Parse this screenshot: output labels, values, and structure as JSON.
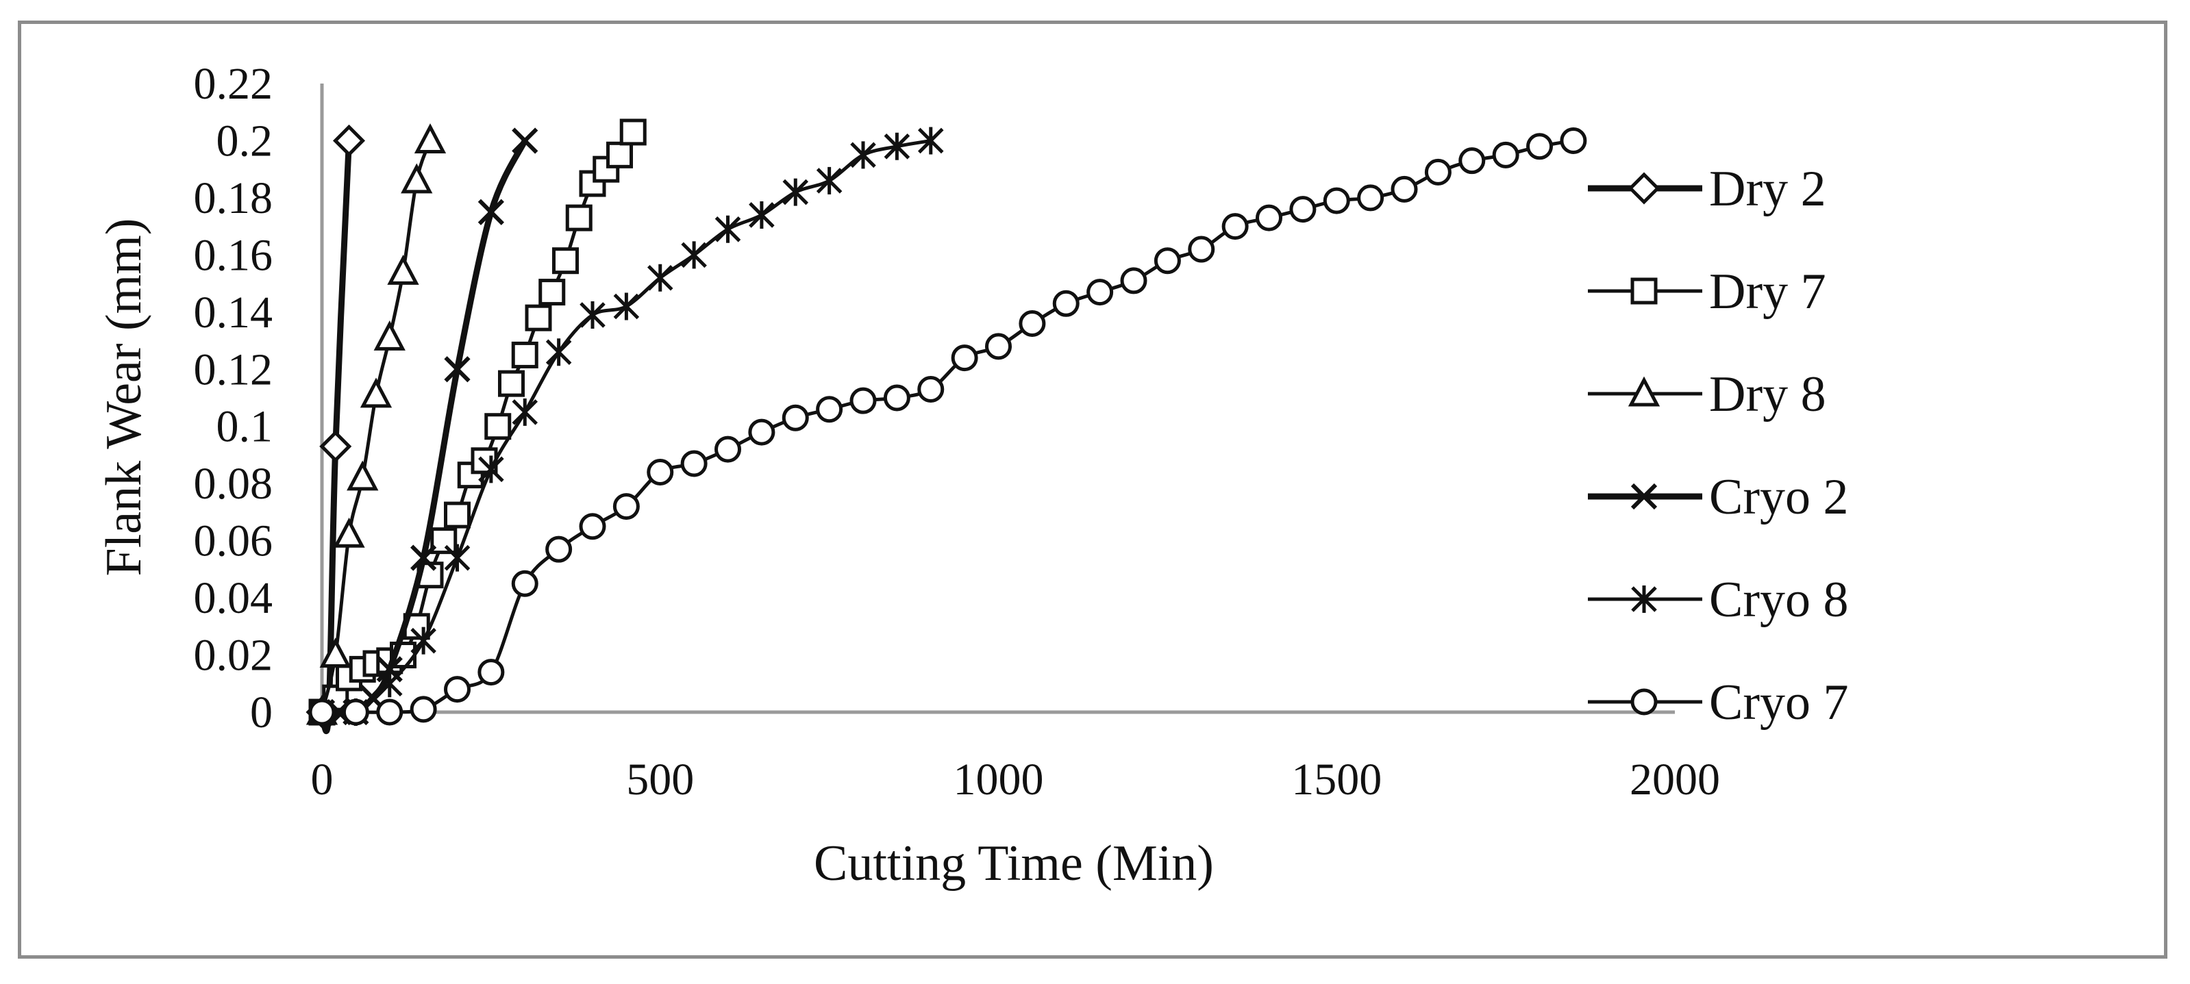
{
  "chart_data": {
    "type": "line",
    "title": "",
    "xlabel": "Cutting Time (Min)",
    "ylabel": "Flank Wear (mm)",
    "xlim": [
      0,
      2000
    ],
    "ylim": [
      0,
      0.22
    ],
    "xticks": [
      0,
      500,
      1000,
      1500,
      2000
    ],
    "yticks": [
      0,
      0.02,
      0.04,
      0.06,
      0.08,
      0.1,
      0.12,
      0.14,
      0.16,
      0.18,
      0.2,
      0.22
    ],
    "xtick_labels": [
      "0",
      "500",
      "1000",
      "1500",
      "2000"
    ],
    "ytick_labels": [
      "0",
      "0.02",
      "0.04",
      "0.06",
      "0.08",
      "0.1",
      "0.12",
      "0.14",
      "0.16",
      "0.18",
      "0.2",
      "0.22"
    ],
    "grid": false,
    "legend_position": "right",
    "series": [
      {
        "name": "Dry 2",
        "marker": "diamond",
        "stroke": 9,
        "x": [
          0,
          10,
          20,
          40
        ],
        "y": [
          0,
          0,
          0.093,
          0.2
        ]
      },
      {
        "name": "Dry 7",
        "marker": "square",
        "stroke": 5,
        "x": [
          0,
          20,
          40,
          60,
          80,
          100,
          120,
          140,
          160,
          180,
          200,
          220,
          240,
          260,
          280,
          300,
          320,
          340,
          360,
          380,
          400,
          420,
          440,
          460
        ],
        "y": [
          0,
          0.005,
          0.012,
          0.015,
          0.017,
          0.018,
          0.02,
          0.03,
          0.048,
          0.06,
          0.069,
          0.083,
          0.088,
          0.1,
          0.115,
          0.125,
          0.138,
          0.147,
          0.158,
          0.173,
          0.185,
          0.19,
          0.195,
          0.203
        ]
      },
      {
        "name": "Dry 8",
        "marker": "triangle",
        "stroke": 5,
        "x": [
          0,
          20,
          40,
          60,
          80,
          100,
          120,
          140,
          160
        ],
        "y": [
          0,
          0.02,
          0.062,
          0.082,
          0.111,
          0.131,
          0.154,
          0.186,
          0.2
        ]
      },
      {
        "name": "Cryo 2",
        "marker": "x",
        "stroke": 9,
        "x": [
          0,
          25,
          50,
          75,
          100,
          150,
          200,
          250,
          300
        ],
        "y": [
          0,
          0,
          0,
          0.005,
          0.015,
          0.054,
          0.12,
          0.175,
          0.2
        ]
      },
      {
        "name": "Cryo 8",
        "marker": "star",
        "stroke": 5,
        "x": [
          0,
          50,
          100,
          150,
          200,
          250,
          300,
          350,
          400,
          450,
          500,
          550,
          600,
          650,
          700,
          750,
          800,
          850,
          900
        ],
        "y": [
          0,
          0,
          0.01,
          0.025,
          0.054,
          0.085,
          0.105,
          0.126,
          0.139,
          0.142,
          0.152,
          0.16,
          0.169,
          0.174,
          0.182,
          0.186,
          0.195,
          0.198,
          0.2
        ]
      },
      {
        "name": "Cryo 7",
        "marker": "circle",
        "stroke": 5,
        "x": [
          0,
          50,
          100,
          150,
          200,
          250,
          300,
          350,
          400,
          450,
          500,
          550,
          600,
          650,
          700,
          750,
          800,
          850,
          900,
          950,
          1000,
          1050,
          1100,
          1150,
          1200,
          1250,
          1300,
          1350,
          1400,
          1450,
          1500,
          1550,
          1600,
          1650,
          1700,
          1750,
          1800,
          1850
        ],
        "y": [
          0,
          0,
          0,
          0.001,
          0.008,
          0.014,
          0.045,
          0.057,
          0.065,
          0.072,
          0.084,
          0.087,
          0.092,
          0.098,
          0.103,
          0.106,
          0.109,
          0.11,
          0.113,
          0.124,
          0.128,
          0.136,
          0.143,
          0.147,
          0.151,
          0.158,
          0.162,
          0.17,
          0.173,
          0.176,
          0.179,
          0.18,
          0.183,
          0.189,
          0.193,
          0.195,
          0.198,
          0.2
        ]
      }
    ]
  }
}
